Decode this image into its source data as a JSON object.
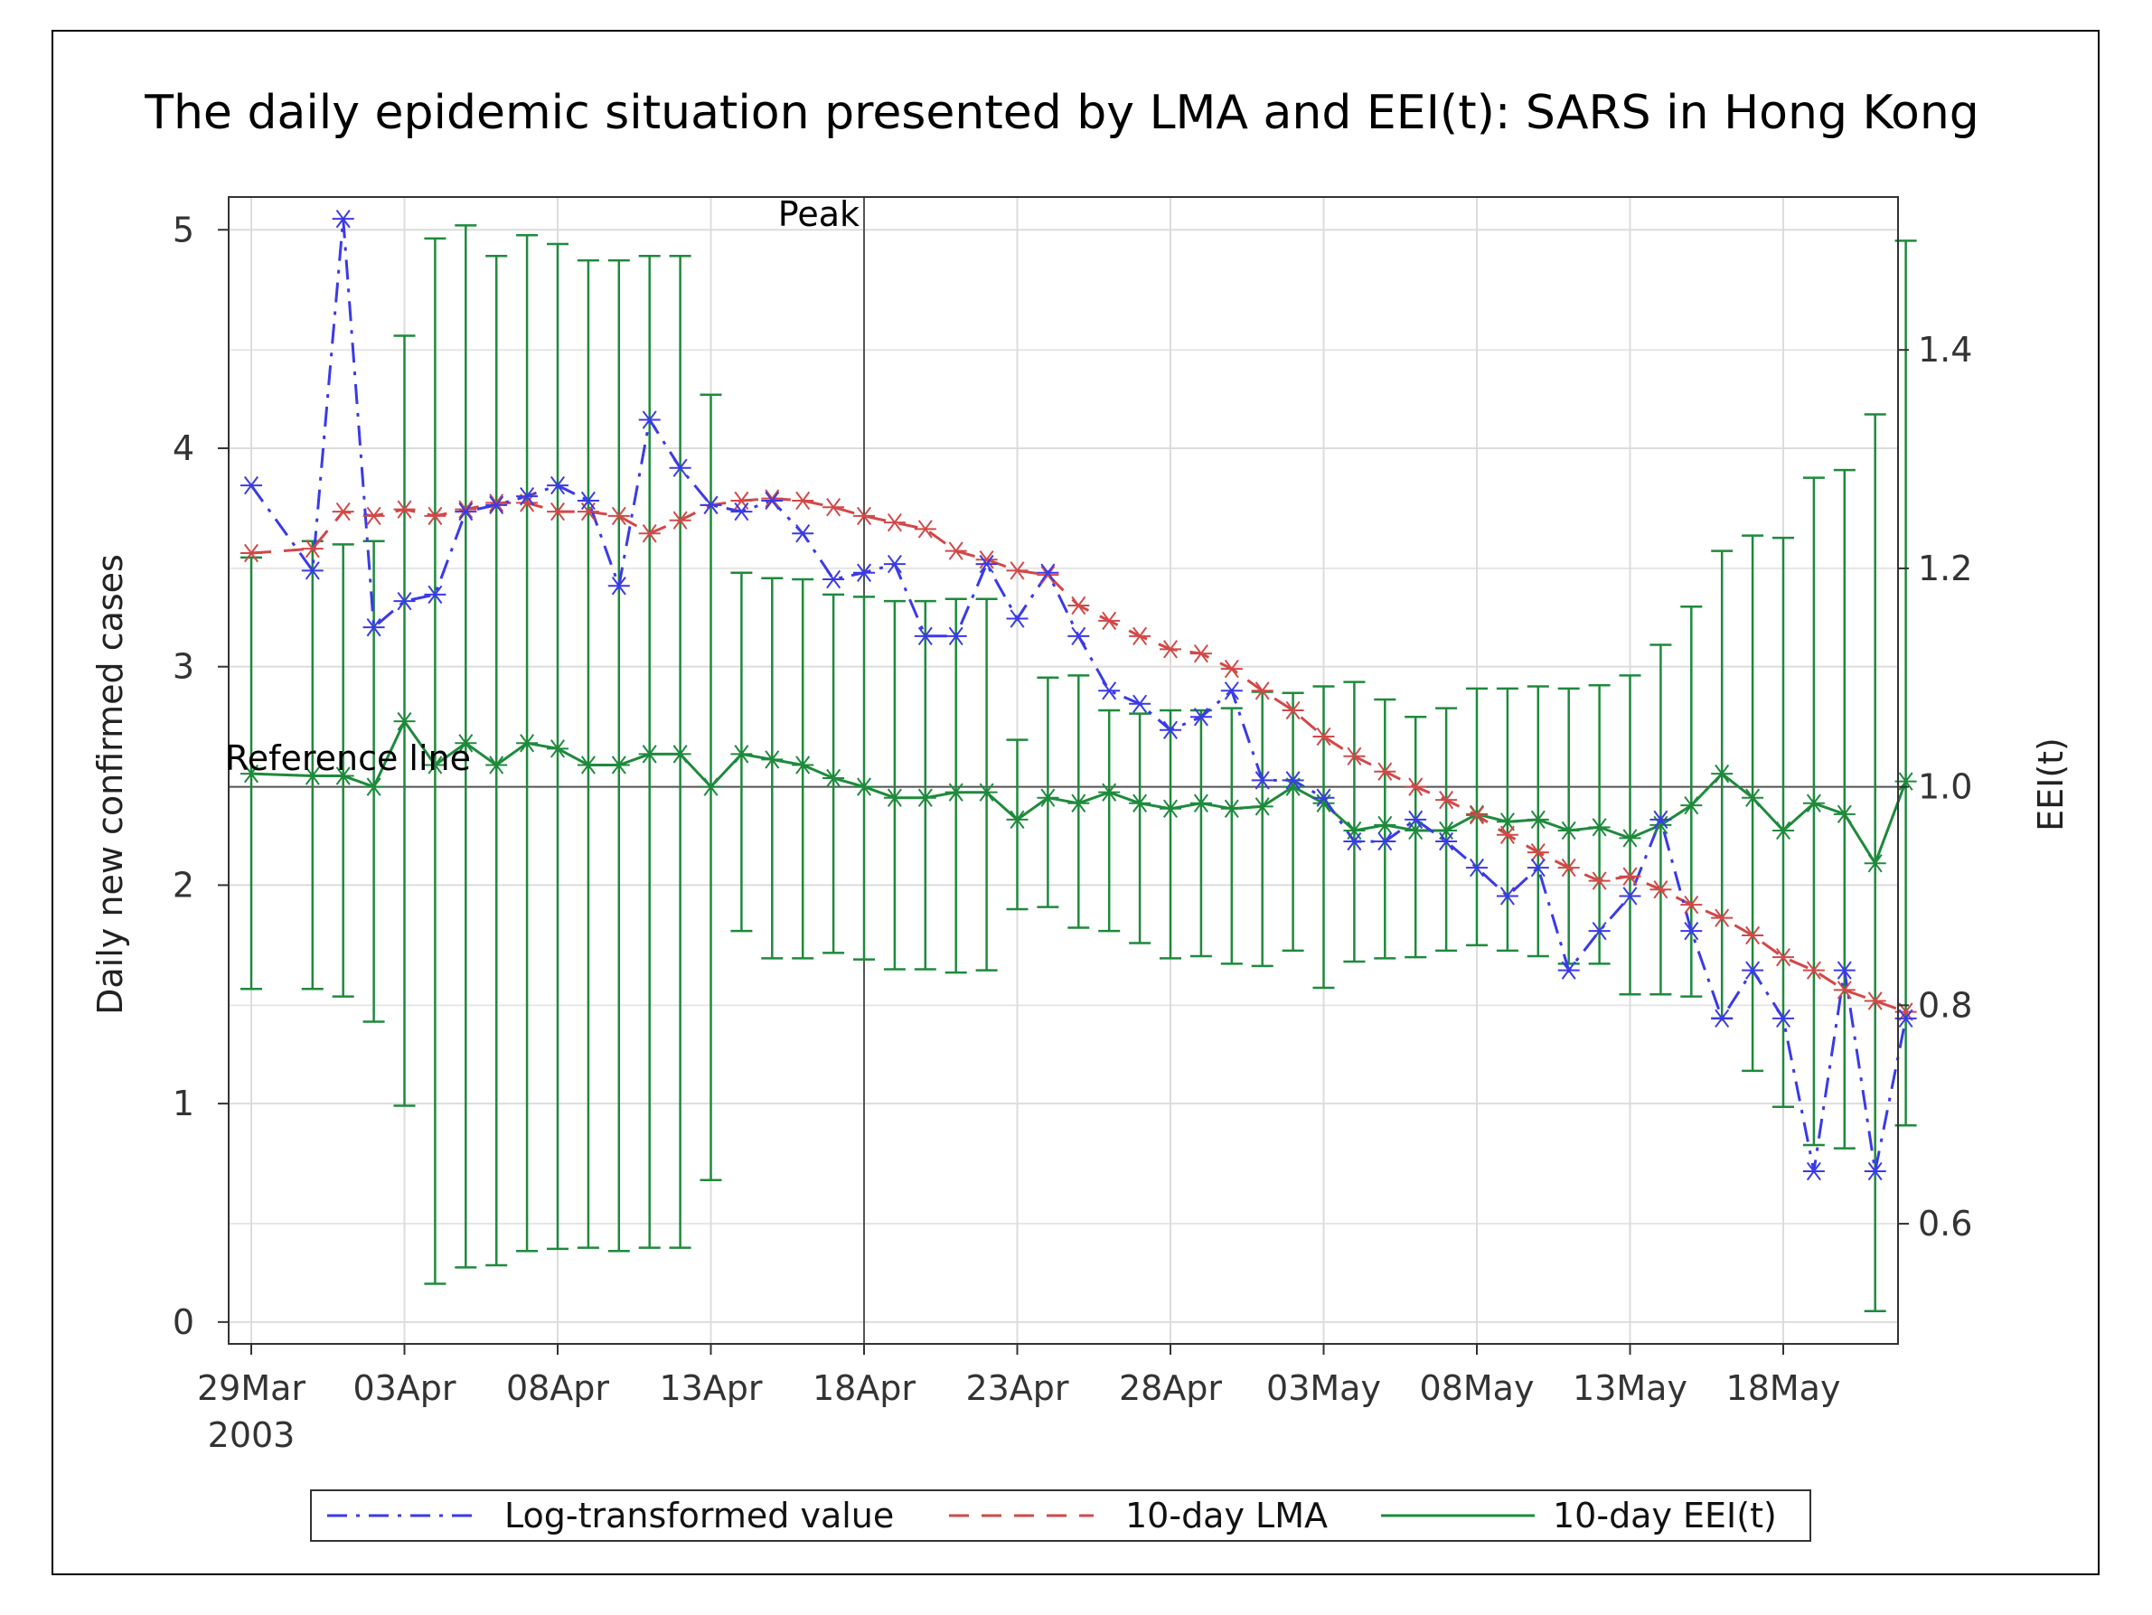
{
  "chart_data": {
    "type": "line",
    "title": "The daily epidemic situation presented by LMA and EEI(t): SARS in Hong Kong",
    "ylabel": "Daily new confirmed cases",
    "y2label": "EEI(t)",
    "ylim": [
      -0.1,
      5.15
    ],
    "y2lim": [
      0.49,
      1.54
    ],
    "yticks": [
      "0",
      "1",
      "2",
      "3",
      "4",
      "5"
    ],
    "y2ticks": [
      "0.6",
      "0.8",
      "1.0",
      "1.2",
      "1.4"
    ],
    "xticks": [
      "29Mar",
      "03Apr",
      "08Apr",
      "13Apr",
      "18Apr",
      "23Apr",
      "28Apr",
      "03May",
      "08May",
      "13May",
      "18May"
    ],
    "xtick_sublabel": "2003",
    "peak_label": "Peak",
    "peak_day": 20,
    "reference_label": "Reference line",
    "reference_value": 1.0,
    "x": [
      0,
      1,
      2,
      3,
      4,
      5,
      6,
      7,
      8,
      9,
      10,
      11,
      12,
      13,
      14,
      15,
      16,
      17,
      18,
      19,
      20,
      21,
      22,
      23,
      24,
      25,
      26,
      27,
      28,
      29,
      30,
      31,
      32,
      33,
      34,
      35,
      36,
      37,
      38,
      39,
      40,
      41,
      42,
      43,
      44,
      45,
      46,
      47,
      48,
      49,
      50,
      51,
      52,
      53,
      54
    ],
    "series": [
      {
        "name": "Log-transformed value",
        "color": "#3a3ae8",
        "axis": "left",
        "values": [
          3.83,
          null,
          3.44,
          5.05,
          3.18,
          3.3,
          3.33,
          3.71,
          3.74,
          3.78,
          3.83,
          3.76,
          3.37,
          4.13,
          3.91,
          3.74,
          3.71,
          3.76,
          3.61,
          3.4,
          3.43,
          3.47,
          3.14,
          3.14,
          3.47,
          3.22,
          3.43,
          3.14,
          2.89,
          2.83,
          2.71,
          2.77,
          2.89,
          2.48,
          2.48,
          2.4,
          2.2,
          2.2,
          2.3,
          2.2,
          2.08,
          1.95,
          2.08,
          1.61,
          1.79,
          1.95,
          2.3,
          1.79,
          1.39,
          1.61,
          1.39,
          0.69,
          1.61,
          0.69,
          1.39
        ]
      },
      {
        "name": "10-day LMA",
        "color": "#d24848",
        "axis": "left",
        "values": [
          3.52,
          null,
          3.54,
          3.71,
          3.69,
          3.72,
          3.69,
          3.72,
          3.75,
          3.75,
          3.71,
          3.71,
          3.69,
          3.61,
          3.67,
          3.74,
          3.76,
          3.77,
          3.76,
          3.73,
          3.69,
          3.66,
          3.63,
          3.53,
          3.49,
          3.44,
          3.42,
          3.28,
          3.21,
          3.14,
          3.08,
          3.06,
          2.99,
          2.89,
          2.8,
          2.68,
          2.59,
          2.52,
          2.45,
          2.39,
          2.32,
          2.23,
          2.15,
          2.08,
          2.02,
          2.04,
          1.98,
          1.91,
          1.85,
          1.77,
          1.67,
          1.61,
          1.52,
          1.47,
          1.42
        ]
      },
      {
        "name": "10-day EEI(t)",
        "color": "#1e8a3c",
        "axis": "right",
        "values": [
          1.012,
          null,
          1.01,
          1.01,
          1.0,
          1.06,
          1.02,
          1.04,
          1.02,
          1.04,
          1.035,
          1.02,
          1.02,
          1.03,
          1.03,
          1.0,
          1.03,
          1.025,
          1.02,
          1.008,
          1.0,
          0.99,
          0.99,
          0.995,
          0.995,
          0.97,
          0.99,
          0.985,
          0.995,
          0.985,
          0.98,
          0.985,
          0.98,
          0.982,
          1.0,
          0.985,
          0.96,
          0.965,
          0.96,
          0.96,
          0.975,
          0.968,
          0.97,
          0.96,
          0.963,
          0.953,
          0.965,
          0.983,
          1.012,
          0.99,
          0.96,
          0.985,
          0.975,
          0.93,
          1.005
        ],
        "lower": [
          0.815,
          null,
          0.815,
          0.808,
          0.785,
          0.708,
          0.545,
          0.56,
          0.562,
          0.575,
          0.577,
          0.578,
          0.575,
          0.578,
          0.578,
          0.64,
          0.868,
          0.843,
          0.843,
          0.848,
          0.842,
          0.833,
          0.833,
          0.83,
          0.832,
          0.888,
          0.89,
          0.871,
          0.868,
          0.857,
          0.843,
          0.845,
          0.838,
          0.836,
          0.85,
          0.816,
          0.84,
          0.843,
          0.844,
          0.85,
          0.855,
          0.85,
          0.845,
          0.838,
          0.838,
          0.81,
          0.81,
          0.808,
          0.788,
          0.74,
          0.707,
          0.672,
          0.669,
          0.52,
          0.69
        ],
        "upper": [
          1.21,
          null,
          1.225,
          1.222,
          1.225,
          1.413,
          1.502,
          1.514,
          1.486,
          1.505,
          1.497,
          1.482,
          1.482,
          1.486,
          1.486,
          1.359,
          1.196,
          1.191,
          1.19,
          1.176,
          1.174,
          1.17,
          1.17,
          1.172,
          1.172,
          1.043,
          1.1,
          1.102,
          1.07,
          1.067,
          1.07,
          1.07,
          1.072,
          1.087,
          1.086,
          1.092,
          1.096,
          1.08,
          1.064,
          1.072,
          1.09,
          1.09,
          1.092,
          1.09,
          1.093,
          1.102,
          1.13,
          1.165,
          1.216,
          1.23,
          1.228,
          1.283,
          1.29,
          1.341,
          1.5
        ]
      }
    ],
    "legend": [
      {
        "label": "Log-transformed value",
        "color": "#3a3ae8",
        "dash": "dashdot"
      },
      {
        "label": "10-day LMA",
        "color": "#d24848",
        "dash": "dash"
      },
      {
        "label": "10-day EEI(t)",
        "color": "#1e8a3c",
        "dash": "solid"
      }
    ]
  }
}
